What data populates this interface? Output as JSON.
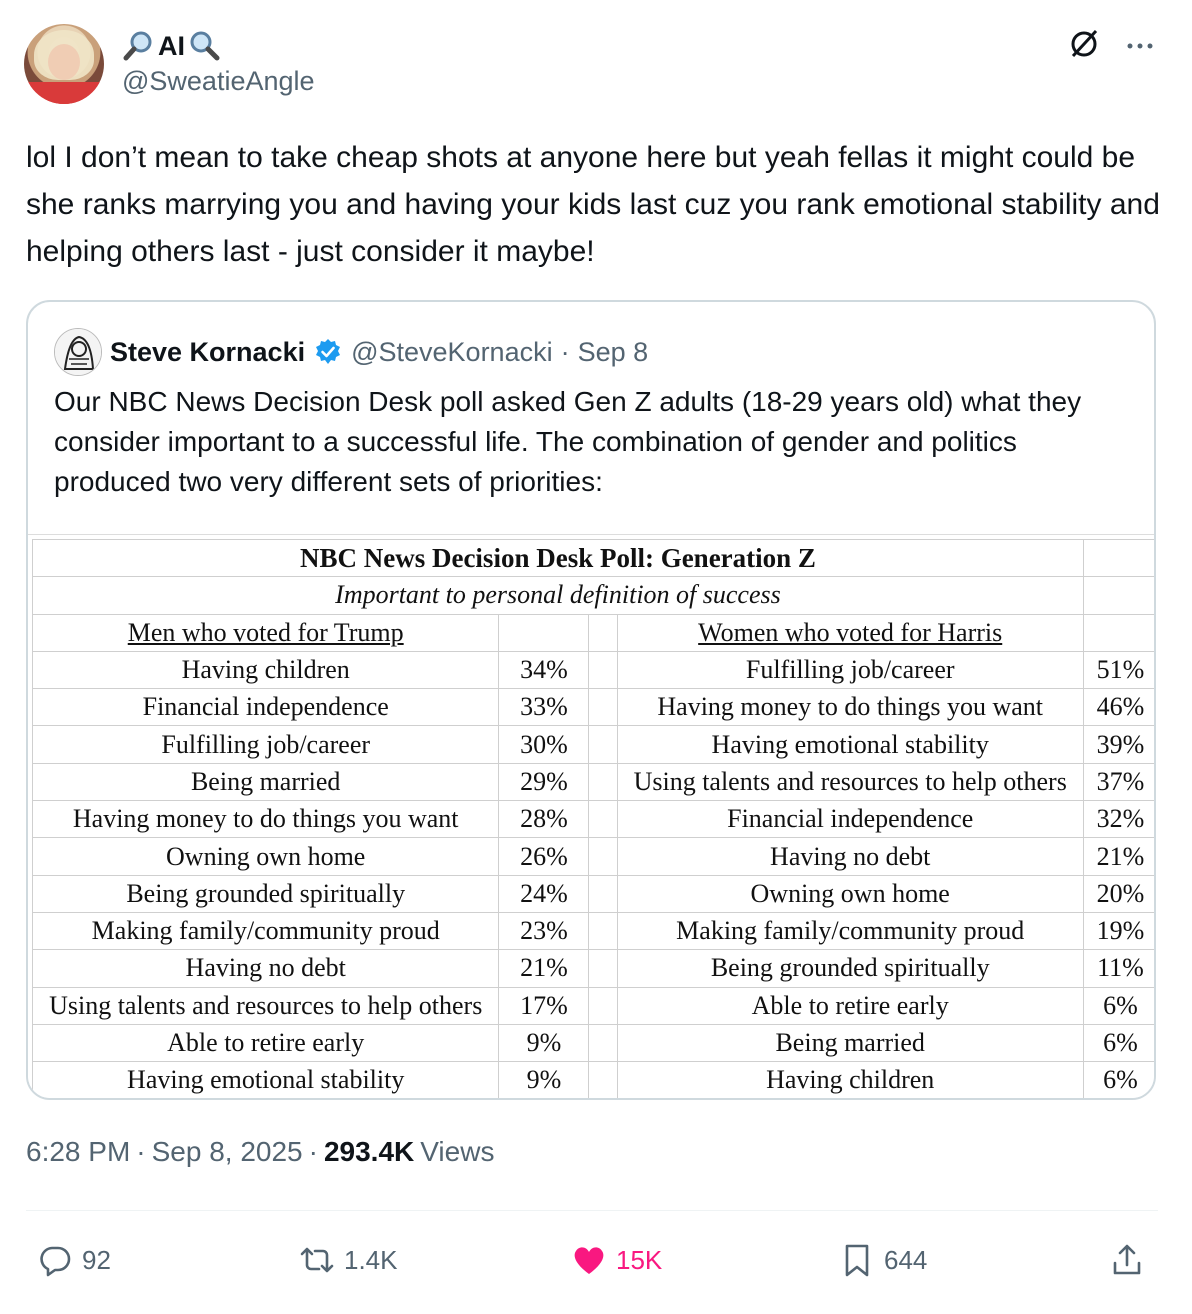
{
  "author": {
    "display_name": "AI",
    "handle": "@SweatieAngle",
    "name_emoji": "magnifying-glass-icon"
  },
  "tweet": {
    "text": "lol I don’t mean to take cheap shots at anyone here but yeah fellas it might could be she ranks marrying you and having your kids last cuz you rank emotional stability and helping others last - just consider it maybe!"
  },
  "quote": {
    "name": "Steve Kornacki",
    "handle": "@SteveKornacki",
    "separator": "·",
    "date": "Sep 8",
    "text": "Our NBC News Decision Desk poll asked Gen Z adults (18-29 years old) what they consider important to a successful life. The combination of gender and politics produced two very different sets of priorities:",
    "poll": {
      "title": "NBC News Decision Desk Poll: Generation Z",
      "subtitle": "Important to personal definition of success",
      "left_header": "Men who voted for Trump",
      "right_header": "Women who voted for Harris",
      "rows": [
        {
          "left_item": "Having children",
          "left_pct": "34%",
          "right_item": "Fulfilling job/career",
          "right_pct": "51%"
        },
        {
          "left_item": "Financial independence",
          "left_pct": "33%",
          "right_item": "Having money to do things you want",
          "right_pct": "46%"
        },
        {
          "left_item": "Fulfilling job/career",
          "left_pct": "30%",
          "right_item": "Having emotional stability",
          "right_pct": "39%"
        },
        {
          "left_item": "Being married",
          "left_pct": "29%",
          "right_item": "Using talents and resources to help others",
          "right_pct": "37%"
        },
        {
          "left_item": "Having money to do things you want",
          "left_pct": "28%",
          "right_item": "Financial independence",
          "right_pct": "32%"
        },
        {
          "left_item": "Owning own home",
          "left_pct": "26%",
          "right_item": "Having no debt",
          "right_pct": "21%"
        },
        {
          "left_item": "Being grounded spiritually",
          "left_pct": "24%",
          "right_item": "Owning own home",
          "right_pct": "20%"
        },
        {
          "left_item": "Making family/community proud",
          "left_pct": "23%",
          "right_item": "Making family/community proud",
          "right_pct": "19%"
        },
        {
          "left_item": "Having no debt",
          "left_pct": "21%",
          "right_item": "Being grounded spiritually",
          "right_pct": "11%"
        },
        {
          "left_item": "Using talents and resources to help others",
          "left_pct": "17%",
          "right_item": "Able to retire early",
          "right_pct": "6%"
        },
        {
          "left_item": "Able to retire early",
          "left_pct": "9%",
          "right_item": "Being married",
          "right_pct": "6%"
        },
        {
          "left_item": "Having emotional stability",
          "left_pct": "9%",
          "right_item": "Having children",
          "right_pct": "6%"
        }
      ]
    }
  },
  "meta": {
    "time": "6:28 PM",
    "separator": "·",
    "date": "Sep 8, 2025",
    "separator2": "·",
    "views_count": "293.4K",
    "views_label": "Views"
  },
  "actions": {
    "replies": "92",
    "retweets": "1.4K",
    "likes": "15K",
    "bookmarks": "644"
  },
  "colors": {
    "like_active": "#f91880",
    "verified": "#1d9bf0",
    "secondary_text": "#536471"
  }
}
